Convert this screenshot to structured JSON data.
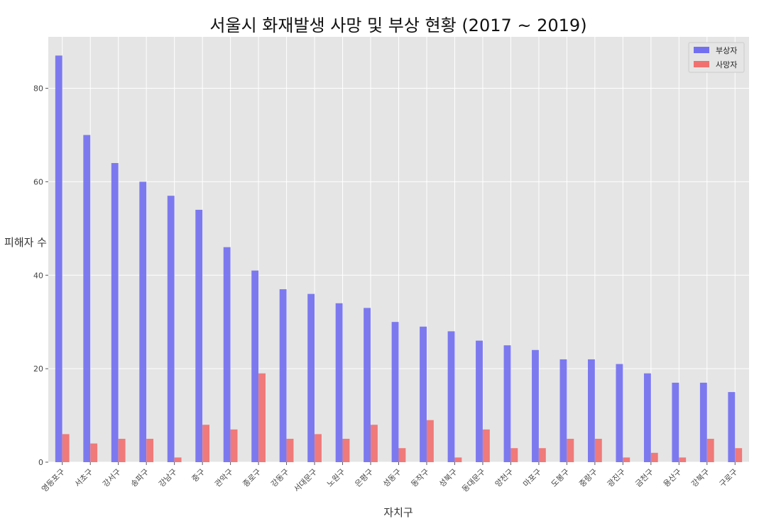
{
  "chart_data": {
    "type": "bar",
    "title": "서울시 화재발생 사망 및 부상 현황 (2017 ~ 2019)",
    "xlabel": "자치구",
    "ylabel": "피해자 수",
    "ylim": [
      0,
      91
    ],
    "yticks": [
      0,
      20,
      40,
      60,
      80
    ],
    "grid": true,
    "legend_position": "top-right",
    "categories": [
      "영등포구",
      "서초구",
      "강서구",
      "송파구",
      "강남구",
      "중구",
      "관악구",
      "종로구",
      "강동구",
      "서대문구",
      "노원구",
      "은평구",
      "성동구",
      "동작구",
      "성북구",
      "동대문구",
      "양천구",
      "마포구",
      "도봉구",
      "중랑구",
      "광진구",
      "금천구",
      "용산구",
      "강북구",
      "구로구"
    ],
    "series": [
      {
        "name": "부상자",
        "color": "#7370f0",
        "values": [
          87,
          70,
          64,
          60,
          57,
          54,
          46,
          41,
          37,
          36,
          34,
          33,
          30,
          29,
          28,
          26,
          25,
          24,
          22,
          22,
          21,
          19,
          17,
          17,
          15
        ]
      },
      {
        "name": "사망자",
        "color": "#f07170",
        "values": [
          6,
          4,
          5,
          5,
          1,
          8,
          7,
          19,
          5,
          6,
          5,
          8,
          3,
          9,
          1,
          7,
          3,
          3,
          5,
          5,
          1,
          2,
          1,
          5,
          3
        ]
      }
    ]
  }
}
